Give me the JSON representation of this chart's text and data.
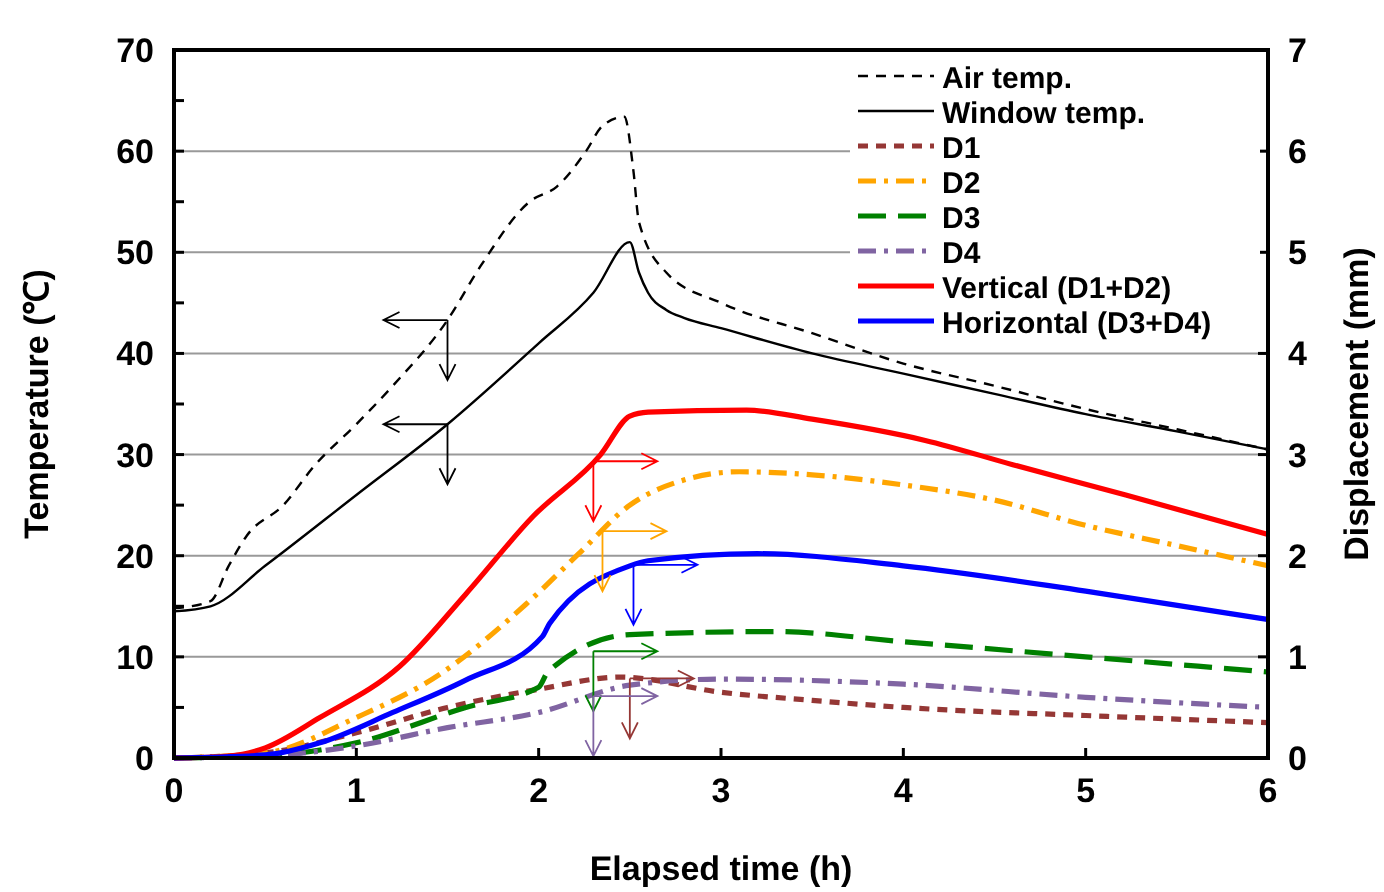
{
  "chart_data": {
    "type": "line",
    "xlabel": "Elapsed time (h)",
    "ylabel": "Temperature (℃)",
    "y2label": "Displacement (mm)",
    "xlim": [
      0,
      6
    ],
    "xticks": [
      0,
      1,
      2,
      3,
      4,
      5,
      6
    ],
    "ylim": [
      0,
      70
    ],
    "yticks": [
      0,
      {
        "value": 5,
        "label": null
      },
      10,
      {
        "value": 15,
        "label": null
      },
      20,
      {
        "value": 25,
        "label": null
      },
      30,
      {
        "value": 35,
        "label": null
      },
      40,
      {
        "value": 45,
        "label": null
      },
      50,
      {
        "value": 55,
        "label": null
      },
      60,
      {
        "value": 65,
        "label": null
      },
      70
    ],
    "y2lim": [
      0,
      7
    ],
    "y2ticks": [
      0,
      1,
      2,
      3,
      4,
      5,
      6,
      7
    ],
    "grid": "y",
    "legend": "top right",
    "marker": "none",
    "series": [
      {
        "name": "Air temp.",
        "color": "#000000",
        "line_style": "dashed",
        "x": [
          0,
          0.2,
          0.3,
          0.4,
          0.6,
          0.77,
          1,
          1.2,
          1.5,
          1.68,
          1.95,
          2.1,
          2.26,
          2.35,
          2.47,
          2.52,
          2.55,
          2.7,
          3,
          3.5,
          4,
          4.5,
          5,
          5.5,
          6
        ],
        "values": [
          14.8,
          15.5,
          19,
          22,
          25,
          28.9,
          33,
          36.8,
          43.3,
          48.6,
          55,
          56.5,
          60,
          62.5,
          63.4,
          58,
          53,
          48,
          45,
          42,
          39,
          36.8,
          34.5,
          32.5,
          30.5
        ]
      },
      {
        "name": "Window temp.",
        "color": "#000000",
        "line_style": "solid",
        "x": [
          0,
          0.2,
          0.5,
          1,
          1.5,
          2,
          2.3,
          2.5,
          2.55,
          2.6,
          2.7,
          2.8,
          3,
          3.5,
          4,
          4.5,
          5,
          5.5,
          6
        ],
        "values": [
          14.5,
          15,
          19,
          26,
          33,
          41,
          46,
          51,
          48,
          46,
          44.3,
          43.5,
          42.5,
          40,
          38,
          36,
          34,
          32.3,
          30.5
        ]
      },
      {
        "name": "D1",
        "color": "#953735",
        "line_style": "dashed",
        "axis": "y2",
        "x": [
          0,
          0.5,
          1,
          1.5,
          2,
          2.45,
          3,
          3.5,
          4,
          5,
          6
        ],
        "values": [
          0,
          0.05,
          0.25,
          0.5,
          0.68,
          0.8,
          0.65,
          0.57,
          0.5,
          0.42,
          0.35
        ]
      },
      {
        "name": "D2",
        "color": "#ffa500",
        "line_style": "dashdot",
        "axis": "y2",
        "x": [
          0,
          0.5,
          1,
          1.46,
          1.93,
          2.22,
          2.5,
          2.8,
          3.1,
          3.5,
          4,
          4.5,
          5,
          5.5,
          6
        ],
        "values": [
          0,
          0.05,
          0.4,
          0.83,
          1.52,
          2.02,
          2.5,
          2.75,
          2.83,
          2.8,
          2.7,
          2.55,
          2.3,
          2.1,
          1.9
        ]
      },
      {
        "name": "D3",
        "color": "#008000",
        "line_style": "longdash",
        "axis": "y2",
        "x": [
          0,
          0.5,
          1,
          1.6,
          2,
          2.05,
          2.5,
          3.3,
          4,
          5,
          6
        ],
        "values": [
          0,
          0.02,
          0.15,
          0.5,
          0.7,
          0.85,
          1.22,
          1.25,
          1.15,
          1,
          0.85
        ]
      },
      {
        "name": "D4",
        "color": "#8064a2",
        "line_style": "dashdot",
        "axis": "y2",
        "x": [
          0,
          0.5,
          1,
          1.5,
          2,
          2.5,
          3,
          4,
          5,
          6
        ],
        "values": [
          0,
          0.02,
          0.12,
          0.3,
          0.45,
          0.72,
          0.78,
          0.73,
          0.6,
          0.5
        ]
      },
      {
        "name": "Vertical (D1+D2)",
        "color": "#ff0000",
        "line_style": "solid",
        "axis": "y2",
        "x": [
          0,
          0.3,
          0.5,
          0.8,
          1.24,
          1.6,
          1.97,
          2.34,
          2.5,
          2.6,
          3.14,
          3.5,
          4.12,
          4.6,
          5.22,
          6
        ],
        "values": [
          0,
          0.02,
          0.1,
          0.4,
          0.91,
          1.62,
          2.39,
          3,
          3.38,
          3.42,
          3.44,
          3.35,
          3.14,
          2.9,
          2.6,
          2.21
        ]
      },
      {
        "name": "Horizontal (D3+D4)",
        "color": "#0000ff",
        "line_style": "solid",
        "axis": "y2",
        "x": [
          0,
          0.5,
          0.8,
          1.2,
          1.6,
          2.02,
          2.06,
          2.5,
          2.6,
          3.2,
          4,
          5,
          6
        ],
        "values": [
          0,
          0.03,
          0.15,
          0.45,
          0.77,
          1.2,
          1.33,
          1.9,
          1.95,
          2.02,
          1.9,
          1.65,
          1.37
        ]
      }
    ]
  }
}
